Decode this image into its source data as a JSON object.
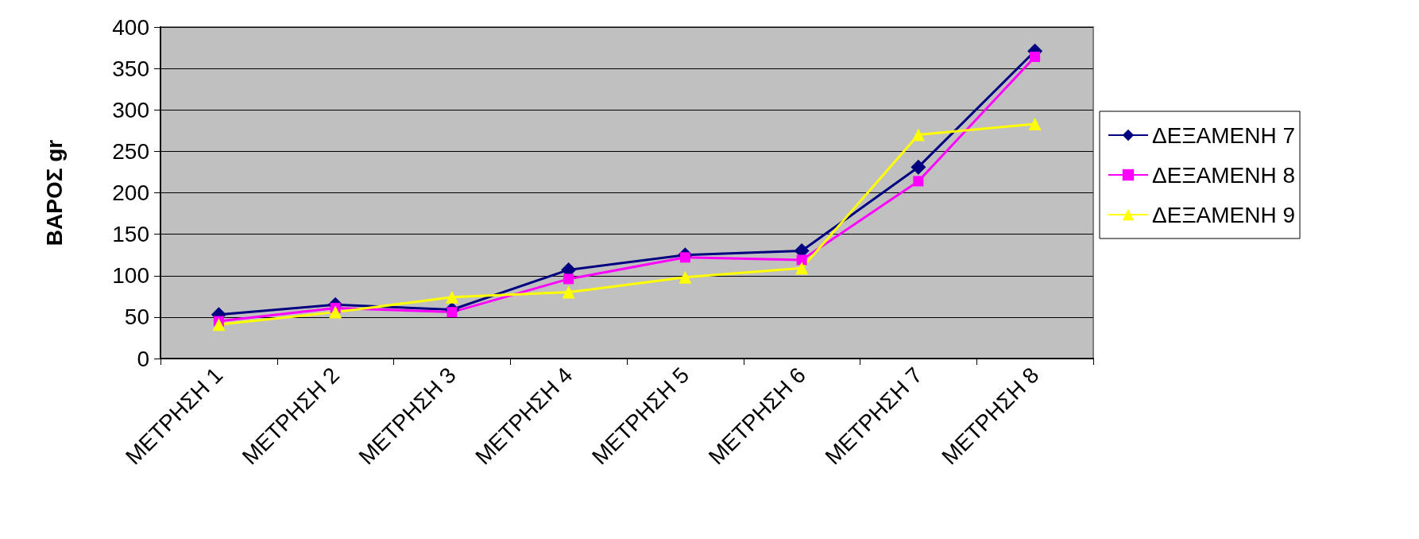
{
  "chart_data": {
    "type": "line",
    "ylabel": "ΒΑΡΟΣ gr",
    "categories": [
      "ΜΕΤΡΗΣΗ 1",
      "ΜΕΤΡΗΣΗ 2",
      "ΜΕΤΡΗΣΗ 3",
      "ΜΕΤΡΗΣΗ 4",
      "ΜΕΤΡΗΣΗ 5",
      "ΜΕΤΡΗΣΗ 6",
      "ΜΕΤΡΗΣΗ 7",
      "ΜΕΤΡΗΣΗ 8"
    ],
    "series": [
      {
        "name": "ΔΕΞΑΜΕΝΗ 7",
        "color": "#000080",
        "marker": "diamond",
        "values": [
          53,
          65,
          59,
          107,
          125,
          130,
          231,
          371
        ]
      },
      {
        "name": "ΔΕΞΑΜΕΝΗ 8",
        "color": "#ff00ff",
        "marker": "square",
        "values": [
          45,
          61,
          56,
          96,
          122,
          119,
          214,
          364
        ]
      },
      {
        "name": "ΔΕΞΑΜΕΝΗ 9",
        "color": "#ffff00",
        "marker": "triangle",
        "values": [
          41,
          56,
          74,
          80,
          98,
          109,
          270,
          283
        ]
      }
    ],
    "ylim": [
      0,
      400
    ],
    "yticks": [
      0,
      50,
      100,
      150,
      200,
      250,
      300,
      350,
      400
    ],
    "grid": "y",
    "legend": "right"
  }
}
